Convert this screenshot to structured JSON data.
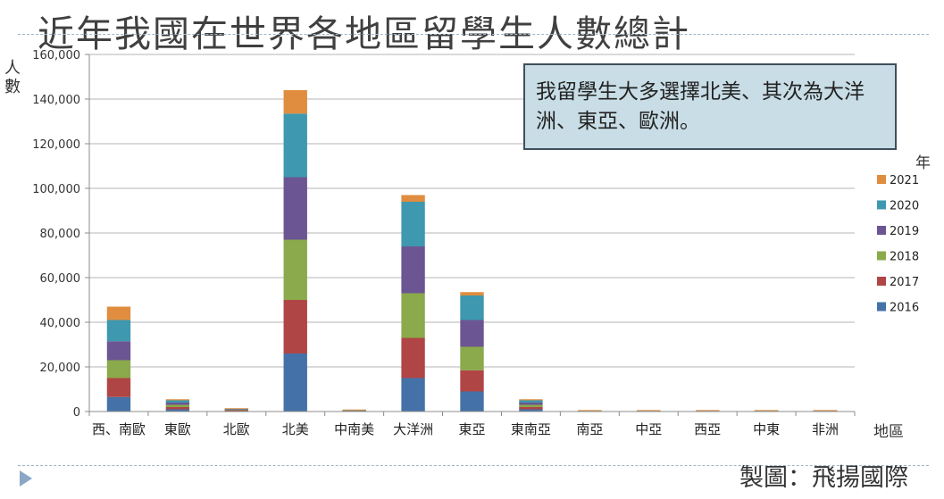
{
  "page": {
    "title": "近年我國在世界各地區留學生人數總計",
    "credit": "製圖：飛揚國際",
    "note": "我留學生大多選擇北美、其次為大洋洲、東亞、歐洲。"
  },
  "chart_data": {
    "type": "bar",
    "stacked": true,
    "title": "",
    "xlabel": "地區",
    "ylabel": "人數",
    "legend_title": "年",
    "legend_position": "right",
    "grid": true,
    "ylim": [
      0,
      160000
    ],
    "yticks": [
      "0",
      "20,000",
      "40,000",
      "60,000",
      "80,000",
      "100,000",
      "120,000",
      "140,000",
      "160,000"
    ],
    "ytick_values": [
      0,
      20000,
      40000,
      60000,
      80000,
      100000,
      120000,
      140000,
      160000
    ],
    "categories": [
      "西、南歐",
      "東歐",
      "北歐",
      "北美",
      "中南美",
      "大洋洲",
      "東亞",
      "東南亞",
      "南亞",
      "中亞",
      "西亞",
      "中東",
      "非洲"
    ],
    "series": [
      {
        "name": "2016",
        "color": "#4472a8",
        "values": [
          6500,
          1000,
          200,
          26000,
          100,
          15000,
          9000,
          1000,
          50,
          50,
          50,
          50,
          50
        ]
      },
      {
        "name": "2017",
        "color": "#b04545",
        "values": [
          8500,
          1000,
          300,
          24000,
          100,
          18000,
          9500,
          1000,
          50,
          50,
          50,
          50,
          50
        ]
      },
      {
        "name": "2018",
        "color": "#8aaa4b",
        "values": [
          8000,
          1000,
          200,
          27000,
          100,
          20000,
          10500,
          1000,
          50,
          50,
          50,
          50,
          50
        ]
      },
      {
        "name": "2019",
        "color": "#6c5593",
        "values": [
          8500,
          1000,
          200,
          28000,
          100,
          21000,
          12000,
          1000,
          50,
          50,
          50,
          50,
          50
        ]
      },
      {
        "name": "2020",
        "color": "#3e98b0",
        "values": [
          9500,
          1000,
          200,
          28500,
          100,
          20000,
          11000,
          1000,
          50,
          50,
          50,
          50,
          50
        ]
      },
      {
        "name": "2021",
        "color": "#e08d3f",
        "values": [
          6000,
          500,
          200,
          10500,
          100,
          3000,
          1500,
          500,
          50,
          50,
          50,
          50,
          50
        ]
      }
    ]
  }
}
